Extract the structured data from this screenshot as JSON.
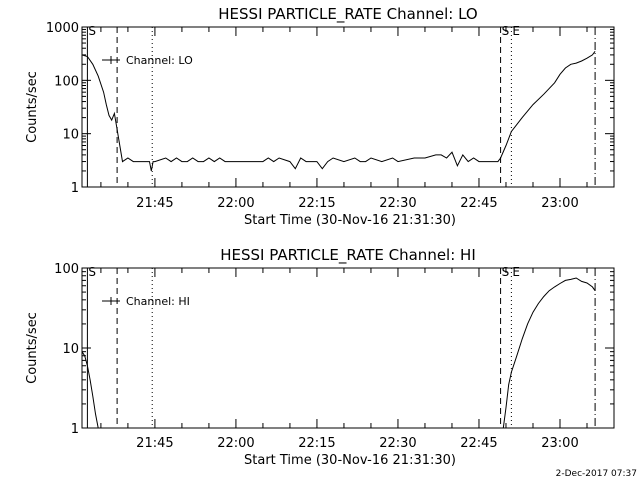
{
  "footer": {
    "timestamp": "2-Dec-2017 07:37"
  },
  "chart_data": [
    {
      "type": "line",
      "title": "HESSI PARTICLE_RATE Channel: LO",
      "xlabel": "Start Time (30-Nov-16 21:31:30)",
      "ylabel": "Counts/sec",
      "y_scale": "log",
      "ylim": [
        1,
        1000
      ],
      "xlim": [
        "21:31:30",
        "23:10:00"
      ],
      "x_ticks": [
        "21:45",
        "22:00",
        "22:15",
        "22:30",
        "22:45",
        "23:00"
      ],
      "y_ticks": [
        "1",
        "10",
        "100",
        "1000"
      ],
      "legend": {
        "entries": [
          "Channel: LO"
        ],
        "position": "top-left"
      },
      "markers": [
        {
          "label": "S",
          "x": "21:32:30",
          "style": "solid"
        },
        {
          "label": "",
          "x": "21:38:00",
          "style": "dashed"
        },
        {
          "label": "",
          "x": "21:44:30",
          "style": "dotted"
        },
        {
          "label": "S",
          "x": "22:49:00",
          "style": "dashed"
        },
        {
          "label": "E",
          "x": "22:51:00",
          "style": "dotted"
        },
        {
          "label": "",
          "x": "23:06:30",
          "style": "dash-dot"
        }
      ],
      "series": [
        {
          "name": "Channel: LO",
          "x": [
            "21:31:30",
            "21:32:30",
            "21:33:30",
            "21:34:30",
            "21:35:30",
            "21:36:00",
            "21:36:30",
            "21:37:00",
            "21:37:30",
            "21:38:00",
            "21:38:30",
            "21:39:00",
            "21:40:00",
            "21:41:00",
            "21:42:00",
            "21:43:00",
            "21:44:00",
            "21:44:20",
            "21:44:40",
            "21:45:00",
            "21:47:00",
            "21:48:00",
            "21:49:00",
            "21:50:00",
            "21:51:00",
            "21:52:00",
            "21:53:00",
            "21:54:00",
            "21:55:00",
            "21:56:00",
            "21:57:00",
            "21:58:00",
            "22:00:00",
            "22:05:00",
            "22:06:00",
            "22:07:00",
            "22:08:00",
            "22:10:00",
            "22:11:00",
            "22:12:00",
            "22:13:00",
            "22:15:00",
            "22:16:00",
            "22:17:00",
            "22:18:00",
            "22:20:00",
            "22:22:00",
            "22:23:00",
            "22:24:00",
            "22:25:00",
            "22:27:00",
            "22:29:00",
            "22:30:00",
            "22:33:00",
            "22:35:00",
            "22:37:00",
            "22:38:00",
            "22:39:00",
            "22:40:00",
            "22:41:00",
            "22:42:00",
            "22:43:00",
            "22:44:00",
            "22:45:00",
            "22:47:00",
            "22:48:00",
            "22:48:30",
            "22:49:00",
            "22:50:00",
            "22:51:00",
            "22:53:00",
            "22:55:00",
            "22:57:00",
            "22:59:00",
            "23:00:00",
            "23:01:00",
            "23:02:00",
            "23:03:00",
            "23:04:00",
            "23:05:00",
            "23:06:00",
            "23:06:30"
          ],
          "values": [
            300,
            280,
            200,
            120,
            60,
            35,
            22,
            18,
            24,
            12,
            6,
            3,
            3.5,
            3,
            3,
            3,
            3,
            2,
            3,
            3,
            3.5,
            3,
            3.5,
            3,
            3,
            3.5,
            3,
            3,
            3.5,
            3,
            3.5,
            3,
            3,
            3,
            3.5,
            3,
            3.5,
            3,
            2.2,
            3.5,
            3,
            3,
            2.2,
            3,
            3.5,
            3,
            3.5,
            3,
            3,
            3.5,
            3,
            3.5,
            3,
            3.5,
            3.5,
            4,
            4,
            3.5,
            4.5,
            2.5,
            4,
            3,
            3.5,
            3,
            3,
            3,
            3,
            3.5,
            6,
            11,
            20,
            35,
            55,
            90,
            130,
            170,
            200,
            210,
            230,
            260,
            300,
            350
          ]
        }
      ]
    },
    {
      "type": "line",
      "title": "HESSI PARTICLE_RATE Channel: HI",
      "xlabel": "Start Time (30-Nov-16 21:31:30)",
      "ylabel": "Counts/sec",
      "y_scale": "log",
      "ylim": [
        1,
        100
      ],
      "xlim": [
        "21:31:30",
        "23:10:00"
      ],
      "x_ticks": [
        "21:45",
        "22:00",
        "22:15",
        "22:30",
        "22:45",
        "23:00"
      ],
      "y_ticks": [
        "1",
        "10",
        "100"
      ],
      "legend": {
        "entries": [
          "Channel: HI"
        ],
        "position": "top-left"
      },
      "markers": [
        {
          "label": "S",
          "x": "21:32:30",
          "style": "solid"
        },
        {
          "label": "",
          "x": "21:38:00",
          "style": "dashed"
        },
        {
          "label": "",
          "x": "21:44:30",
          "style": "dotted"
        },
        {
          "label": "S",
          "x": "22:49:00",
          "style": "dashed"
        },
        {
          "label": "E",
          "x": "22:51:00",
          "style": "dotted"
        },
        {
          "label": "",
          "x": "23:06:30",
          "style": "dash-dot"
        }
      ],
      "series": [
        {
          "name": "Channel: HI",
          "x": [
            "21:31:30",
            "21:32:00",
            "21:32:30",
            "21:33:00",
            "21:33:30",
            "21:34:00",
            "21:34:30",
            "22:49:30",
            "22:50:00",
            "22:50:30",
            "22:51:00",
            "22:52:00",
            "22:53:00",
            "22:54:00",
            "22:55:00",
            "22:56:00",
            "22:57:00",
            "22:58:00",
            "22:59:00",
            "23:00:00",
            "23:01:00",
            "23:02:00",
            "23:03:00",
            "23:04:00",
            "23:05:00",
            "23:06:00",
            "23:06:30"
          ],
          "values": [
            9,
            8,
            6,
            4,
            2.5,
            1.5,
            1,
            1,
            1.8,
            3.5,
            5,
            8,
            13,
            20,
            28,
            36,
            44,
            52,
            58,
            64,
            70,
            72,
            75,
            68,
            65,
            58,
            52
          ]
        }
      ]
    }
  ]
}
